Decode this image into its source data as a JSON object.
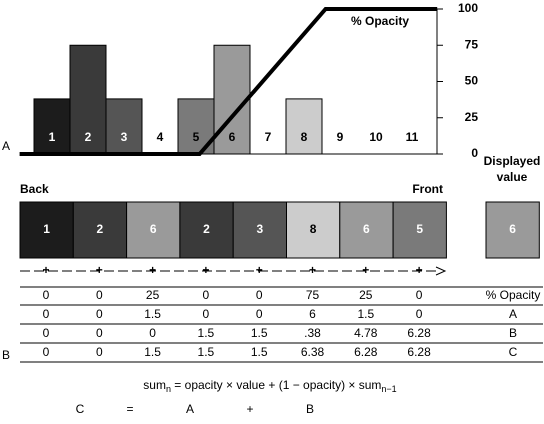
{
  "panel_a": {
    "label": "A",
    "categories": [
      "1",
      "2",
      "3",
      "4",
      "5",
      "6",
      "7",
      "8",
      "9",
      "10",
      "11"
    ],
    "values": [
      38,
      75,
      38,
      0,
      38,
      75,
      0,
      38,
      0,
      0,
      0
    ],
    "colors": [
      "#1c1c1c",
      "#3a3a3a",
      "#555555",
      "#555555",
      "#7a7a7a",
      "#9a9a9a",
      "#9a9a9a",
      "#cccccc",
      "#cccccc",
      "#cccccc",
      "#cccccc"
    ],
    "ylim": [
      0,
      100
    ],
    "yticks": [
      0,
      25,
      50,
      75,
      100
    ],
    "y_title": "% Opacity",
    "x_title": [
      "Displayed",
      "value"
    ],
    "opacity_curve": {
      "x": [
        0.1,
        5.1,
        8.6,
        11.7
      ],
      "y": [
        0,
        0,
        100,
        100
      ]
    }
  },
  "panel_b": {
    "label": "B",
    "back": "Back",
    "front": "Front",
    "sequence": [
      "1",
      "2",
      "6",
      "2",
      "3",
      "8",
      "6",
      "5"
    ],
    "result": "6",
    "table": [
      [
        "0",
        "0",
        "25",
        "0",
        "0",
        "75",
        "25",
        "0",
        "% Opacity"
      ],
      [
        "0",
        "0",
        "1.5",
        "0",
        "0",
        "6",
        "1.5",
        "0",
        "A"
      ],
      [
        "0",
        "0",
        "0",
        "1.5",
        "1.5",
        ".38",
        "4.78",
        "6.28",
        "B"
      ],
      [
        "0",
        "0",
        "1.5",
        "1.5",
        "1.5",
        "6.38",
        "6.28",
        "6.28",
        "C"
      ]
    ],
    "formula": {
      "lhs": "sum",
      "lhs_sub": "n",
      "rhs": " = opacity × value + (1 − opacity) × sum",
      "rhs_sub": "n−1"
    },
    "formula_2": [
      "C",
      "=",
      "A",
      "+",
      "B"
    ]
  }
}
